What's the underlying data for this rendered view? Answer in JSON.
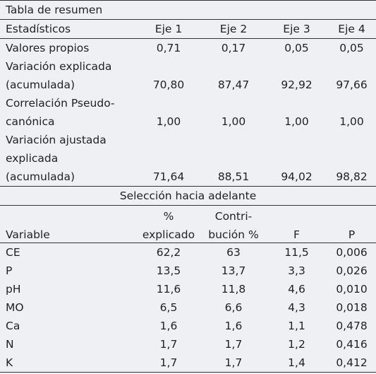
{
  "summary": {
    "title": "Tabla de resumen",
    "headers": [
      "Estadísticos",
      "Eje 1",
      "Eje 2",
      "Eje 3",
      "Eje 4"
    ],
    "rows": [
      {
        "label": [
          "Valores propios"
        ],
        "values": [
          "0,71",
          "0,17",
          "0,05",
          "0,05"
        ]
      },
      {
        "label": [
          "Variación explicada",
          "(acumulada)"
        ],
        "values": [
          "70,80",
          "87,47",
          "92,92",
          "97,66"
        ]
      },
      {
        "label": [
          "Correlación Pseudo-",
          "canónica"
        ],
        "values": [
          "1,00",
          "1,00",
          "1,00",
          "1,00"
        ]
      },
      {
        "label": [
          "Variación ajustada",
          "explicada",
          "(acumulada)"
        ],
        "values": [
          "71,64",
          "88,51",
          "94,02",
          "98,82"
        ]
      }
    ]
  },
  "forward": {
    "title": "Selección hacia adelante",
    "headers": [
      [
        "Variable"
      ],
      [
        "%",
        "explicado"
      ],
      [
        "Contri-",
        "bución %"
      ],
      [
        "F"
      ],
      [
        "P"
      ]
    ],
    "rows": [
      [
        "CE",
        "62,2",
        "63",
        "11,5",
        "0,006"
      ],
      [
        "P",
        "13,5",
        "13,7",
        "3,3",
        "0,026"
      ],
      [
        "pH",
        "11,6",
        "11,8",
        "4,6",
        "0,010"
      ],
      [
        "MO",
        "6,5",
        "6,6",
        "4,3",
        "0,018"
      ],
      [
        "Ca",
        "1,6",
        "1,6",
        "1,1",
        "0,478"
      ],
      [
        "N",
        "1,7",
        "1,7",
        "1,2",
        "0,416"
      ],
      [
        "K",
        "1,7",
        "1,7",
        "1,4",
        "0,412"
      ]
    ]
  }
}
